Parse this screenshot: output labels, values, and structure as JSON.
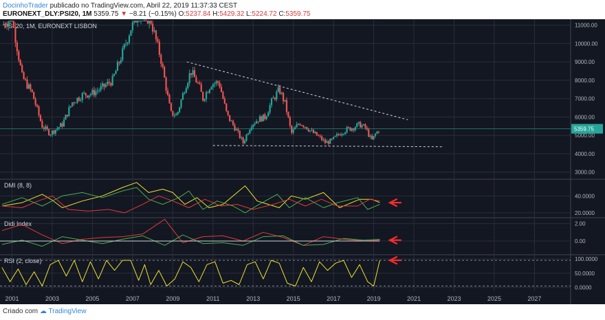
{
  "header": {
    "author": "DocinhoTrader",
    "published": "publicado no TradingView.com, Abril 22, 2019 11:37:33 CEST",
    "symbol": "EURONEXT_DLY:PSI20, 1M",
    "last": "5359.75",
    "change_arrow": "▼",
    "change": "−8.21 (−0.15%)",
    "o_label": "O:",
    "o_value": "5237.84",
    "h_label": "H:",
    "h_value": "5429.32",
    "l_label": "L:",
    "l_value": "5224.72",
    "c_label": "C:",
    "c_value": "5359.75"
  },
  "footer": {
    "created_with": "Criado com",
    "brand": "TradingView"
  },
  "colors": {
    "background": "#131722",
    "up": "#26a69a",
    "down": "#ef5350",
    "grid": "#2a2e39",
    "text": "#b2b5be",
    "yellow": "#f0e130",
    "green": "#4caf50",
    "red": "#e53935",
    "arrow": "#ff2b2b",
    "white_line": "#d1d4dc"
  },
  "chart_data": [
    {
      "type": "candlestick",
      "title": "PSI 20, 1M, EURONEXT LISBON",
      "y_ticks": [
        3000,
        4000,
        5000,
        6000,
        7000,
        8000,
        9000,
        10000,
        11000
      ],
      "y_tick_labels": [
        "3000.00",
        "4000.00",
        "5000.00",
        "6000.00",
        "7000.00",
        "8000.00",
        "9000.00",
        "10000.00",
        "11000.00"
      ],
      "ylim": [
        2650,
        11250
      ],
      "last_price_label": "5359.75",
      "last_price": 5359.75,
      "x_ticks": [
        2001,
        2003,
        2005,
        2007,
        2009,
        2011,
        2013,
        2015,
        2017,
        2019,
        2021,
        2023,
        2025,
        2027
      ],
      "xlim": [
        2000.4,
        2028.8
      ],
      "close_series": [
        [
          2000.5,
          11000
        ],
        [
          2001,
          11400
        ],
        [
          2001.5,
          8200
        ],
        [
          2002,
          7300
        ],
        [
          2002.5,
          5500
        ],
        [
          2002.9,
          5100
        ],
        [
          2003.5,
          5600
        ],
        [
          2004,
          6800
        ],
        [
          2004.5,
          7200
        ],
        [
          2005,
          7300
        ],
        [
          2005.5,
          7600
        ],
        [
          2006,
          8000
        ],
        [
          2006.5,
          9500
        ],
        [
          2006.9,
          10800
        ],
        [
          2007.3,
          11600
        ],
        [
          2007.9,
          11300
        ],
        [
          2008.4,
          9200
        ],
        [
          2008.9,
          6200
        ],
        [
          2009.2,
          6100
        ],
        [
          2009.6,
          7600
        ],
        [
          2009.9,
          8500
        ],
        [
          2010.3,
          7700
        ],
        [
          2010.5,
          7000
        ],
        [
          2010.9,
          7800
        ],
        [
          2011.3,
          7900
        ],
        [
          2011.7,
          6100
        ],
        [
          2012.1,
          5400
        ],
        [
          2012.5,
          4600
        ],
        [
          2012.9,
          5600
        ],
        [
          2013.3,
          5900
        ],
        [
          2013.6,
          6000
        ],
        [
          2013.9,
          6800
        ],
        [
          2014.3,
          7500
        ],
        [
          2014.6,
          6700
        ],
        [
          2014.9,
          5100
        ],
        [
          2015.3,
          5700
        ],
        [
          2015.6,
          5500
        ],
        [
          2015.9,
          5200
        ],
        [
          2016.3,
          4900
        ],
        [
          2016.6,
          4600
        ],
        [
          2016.9,
          4700
        ],
        [
          2017.3,
          5100
        ],
        [
          2017.6,
          5300
        ],
        [
          2017.9,
          5400
        ],
        [
          2018.3,
          5600
        ],
        [
          2018.6,
          5400
        ],
        [
          2018.9,
          4700
        ],
        [
          2019.1,
          5100
        ],
        [
          2019.3,
          5360
        ]
      ],
      "annotations": [
        {
          "type": "dashed_trendline",
          "from": [
            2009.7,
            9000
          ],
          "to": [
            2020.7,
            5850
          ]
        },
        {
          "type": "dashed_support",
          "from": [
            2011.0,
            4450
          ],
          "to": [
            2022.5,
            4380
          ]
        }
      ]
    },
    {
      "type": "line",
      "title": "DMI (8, 8)",
      "y_ticks": [
        20,
        40
      ],
      "y_tick_labels": [
        "20.0000",
        "40.0000"
      ],
      "ylim": [
        15,
        59
      ],
      "series": [
        {
          "color": "yellow",
          "values": [
            [
              2000.5,
              28
            ],
            [
              2001.5,
              32
            ],
            [
              2002.5,
              42
            ],
            [
              2003,
              35
            ],
            [
              2003.5,
              26
            ],
            [
              2004.5,
              34
            ],
            [
              2005.5,
              40
            ],
            [
              2006.5,
              50
            ],
            [
              2007.2,
              56
            ],
            [
              2007.8,
              44
            ],
            [
              2008.5,
              48
            ],
            [
              2009,
              44
            ],
            [
              2009.6,
              30
            ],
            [
              2010.2,
              38
            ],
            [
              2010.8,
              26
            ],
            [
              2011.5,
              30
            ],
            [
              2012.2,
              44
            ],
            [
              2012.6,
              52
            ],
            [
              2013.2,
              34
            ],
            [
              2014.3,
              26
            ],
            [
              2014.9,
              40
            ],
            [
              2015.6,
              36
            ],
            [
              2016.5,
              44
            ],
            [
              2017.3,
              26
            ],
            [
              2018.3,
              36
            ],
            [
              2018.9,
              36
            ],
            [
              2019.3,
              32
            ]
          ]
        },
        {
          "color": "green",
          "values": [
            [
              2000.5,
              30
            ],
            [
              2001.5,
              38
            ],
            [
              2002.5,
              28
            ],
            [
              2003.5,
              40
            ],
            [
              2004.5,
              44
            ],
            [
              2005.5,
              38
            ],
            [
              2006.5,
              46
            ],
            [
              2007.2,
              50
            ],
            [
              2007.8,
              36
            ],
            [
              2008.5,
              30
            ],
            [
              2009.3,
              38
            ],
            [
              2009.8,
              46
            ],
            [
              2010.5,
              24
            ],
            [
              2011.2,
              34
            ],
            [
              2012,
              28
            ],
            [
              2012.6,
              20
            ],
            [
              2013.3,
              30
            ],
            [
              2014.2,
              42
            ],
            [
              2014.8,
              26
            ],
            [
              2015.6,
              38
            ],
            [
              2016.5,
              26
            ],
            [
              2017.2,
              32
            ],
            [
              2018.2,
              38
            ],
            [
              2018.7,
              24
            ],
            [
              2019.3,
              30
            ]
          ]
        },
        {
          "color": "red",
          "values": [
            [
              2000.5,
              28
            ],
            [
              2001.5,
              26
            ],
            [
              2002.3,
              34
            ],
            [
              2003,
              40
            ],
            [
              2003.8,
              24
            ],
            [
              2004.8,
              22
            ],
            [
              2005.8,
              24
            ],
            [
              2006.6,
              20
            ],
            [
              2007.5,
              30
            ],
            [
              2008.3,
              40
            ],
            [
              2009,
              34
            ],
            [
              2009.8,
              26
            ],
            [
              2010.6,
              36
            ],
            [
              2011.4,
              28
            ],
            [
              2012.2,
              30
            ],
            [
              2013,
              24
            ],
            [
              2014,
              30
            ],
            [
              2014.8,
              36
            ],
            [
              2015.6,
              28
            ],
            [
              2016.4,
              36
            ],
            [
              2017.2,
              28
            ],
            [
              2018.2,
              28
            ],
            [
              2018.8,
              36
            ],
            [
              2019.3,
              34
            ]
          ]
        }
      ]
    },
    {
      "type": "line",
      "title": "Didi Index",
      "y_ticks": [
        0,
        2
      ],
      "y_tick_labels": [
        "0.00",
        "2.00"
      ],
      "ylim": [
        -1.5,
        2.6
      ],
      "series": [
        {
          "color": "red",
          "values": [
            [
              2000.5,
              1.2
            ],
            [
              2001.5,
              1.9
            ],
            [
              2002.5,
              0.7
            ],
            [
              2003.5,
              -0.3
            ],
            [
              2004.5,
              0.2
            ],
            [
              2005.5,
              0.4
            ],
            [
              2006.5,
              0.5
            ],
            [
              2007.5,
              0.8
            ],
            [
              2008.6,
              2.5
            ],
            [
              2009.5,
              -0.2
            ],
            [
              2010.5,
              0.5
            ],
            [
              2011.5,
              0.6
            ],
            [
              2012.5,
              0.0
            ],
            [
              2013.5,
              1.0
            ],
            [
              2014.5,
              0.4
            ],
            [
              2015.5,
              -0.5
            ],
            [
              2016.5,
              0.5
            ],
            [
              2017.5,
              0.2
            ],
            [
              2018.5,
              0.0
            ],
            [
              2019.3,
              0.1
            ]
          ]
        },
        {
          "color": "green",
          "values": [
            [
              2000.5,
              -0.4
            ],
            [
              2001.5,
              0.1
            ],
            [
              2002.5,
              -0.6
            ],
            [
              2003.5,
              0.5
            ],
            [
              2004.5,
              0.1
            ],
            [
              2005.5,
              -0.3
            ],
            [
              2006.5,
              0.2
            ],
            [
              2007.5,
              0.6
            ],
            [
              2008.6,
              -0.5
            ],
            [
              2009.5,
              0.7
            ],
            [
              2010.5,
              -0.3
            ],
            [
              2011.5,
              -0.2
            ],
            [
              2012.5,
              -0.5
            ],
            [
              2013.5,
              0.5
            ],
            [
              2014.5,
              0.6
            ],
            [
              2015.5,
              -0.5
            ],
            [
              2016.5,
              -0.4
            ],
            [
              2017.5,
              0.3
            ],
            [
              2018.5,
              0.1
            ],
            [
              2019.3,
              0.2
            ]
          ]
        },
        {
          "color": "white_line",
          "values": [
            [
              2000.4,
              0.0
            ],
            [
              2019.3,
              0.0
            ]
          ]
        }
      ]
    },
    {
      "type": "line",
      "title": "RSI (2, close)",
      "y_ticks": [
        0,
        50,
        100
      ],
      "y_tick_labels": [
        "0.0000",
        "50.0000",
        "100.0000"
      ],
      "ylim": [
        -8,
        112
      ],
      "dashed_levels": [
        5,
        95
      ],
      "series": [
        {
          "color": "yellow",
          "values": [
            [
              2000.5,
              70
            ],
            [
              2000.9,
              20
            ],
            [
              2001.3,
              65
            ],
            [
              2001.7,
              10
            ],
            [
              2002.1,
              55
            ],
            [
              2002.5,
              5
            ],
            [
              2002.9,
              80
            ],
            [
              2003.3,
              95
            ],
            [
              2003.7,
              40
            ],
            [
              2004.1,
              95
            ],
            [
              2004.5,
              20
            ],
            [
              2004.9,
              90
            ],
            [
              2005.3,
              30
            ],
            [
              2005.7,
              95
            ],
            [
              2006.1,
              60
            ],
            [
              2006.5,
              95
            ],
            [
              2006.9,
              95
            ],
            [
              2007.3,
              25
            ],
            [
              2007.6,
              80
            ],
            [
              2007.9,
              10
            ],
            [
              2008.3,
              60
            ],
            [
              2008.7,
              5
            ],
            [
              2009.1,
              30
            ],
            [
              2009.5,
              90
            ],
            [
              2009.9,
              70
            ],
            [
              2010.3,
              20
            ],
            [
              2010.7,
              80
            ],
            [
              2011.1,
              90
            ],
            [
              2011.5,
              15
            ],
            [
              2011.9,
              25
            ],
            [
              2012.3,
              10
            ],
            [
              2012.7,
              80
            ],
            [
              2013.1,
              90
            ],
            [
              2013.5,
              30
            ],
            [
              2013.9,
              95
            ],
            [
              2014.3,
              85
            ],
            [
              2014.7,
              15
            ],
            [
              2015.1,
              5
            ],
            [
              2015.5,
              70
            ],
            [
              2015.9,
              20
            ],
            [
              2016.3,
              90
            ],
            [
              2016.7,
              60
            ],
            [
              2017.1,
              85
            ],
            [
              2017.5,
              95
            ],
            [
              2017.9,
              35
            ],
            [
              2018.3,
              80
            ],
            [
              2018.7,
              20
            ],
            [
              2019.0,
              5
            ],
            [
              2019.3,
              95
            ]
          ]
        }
      ]
    }
  ]
}
